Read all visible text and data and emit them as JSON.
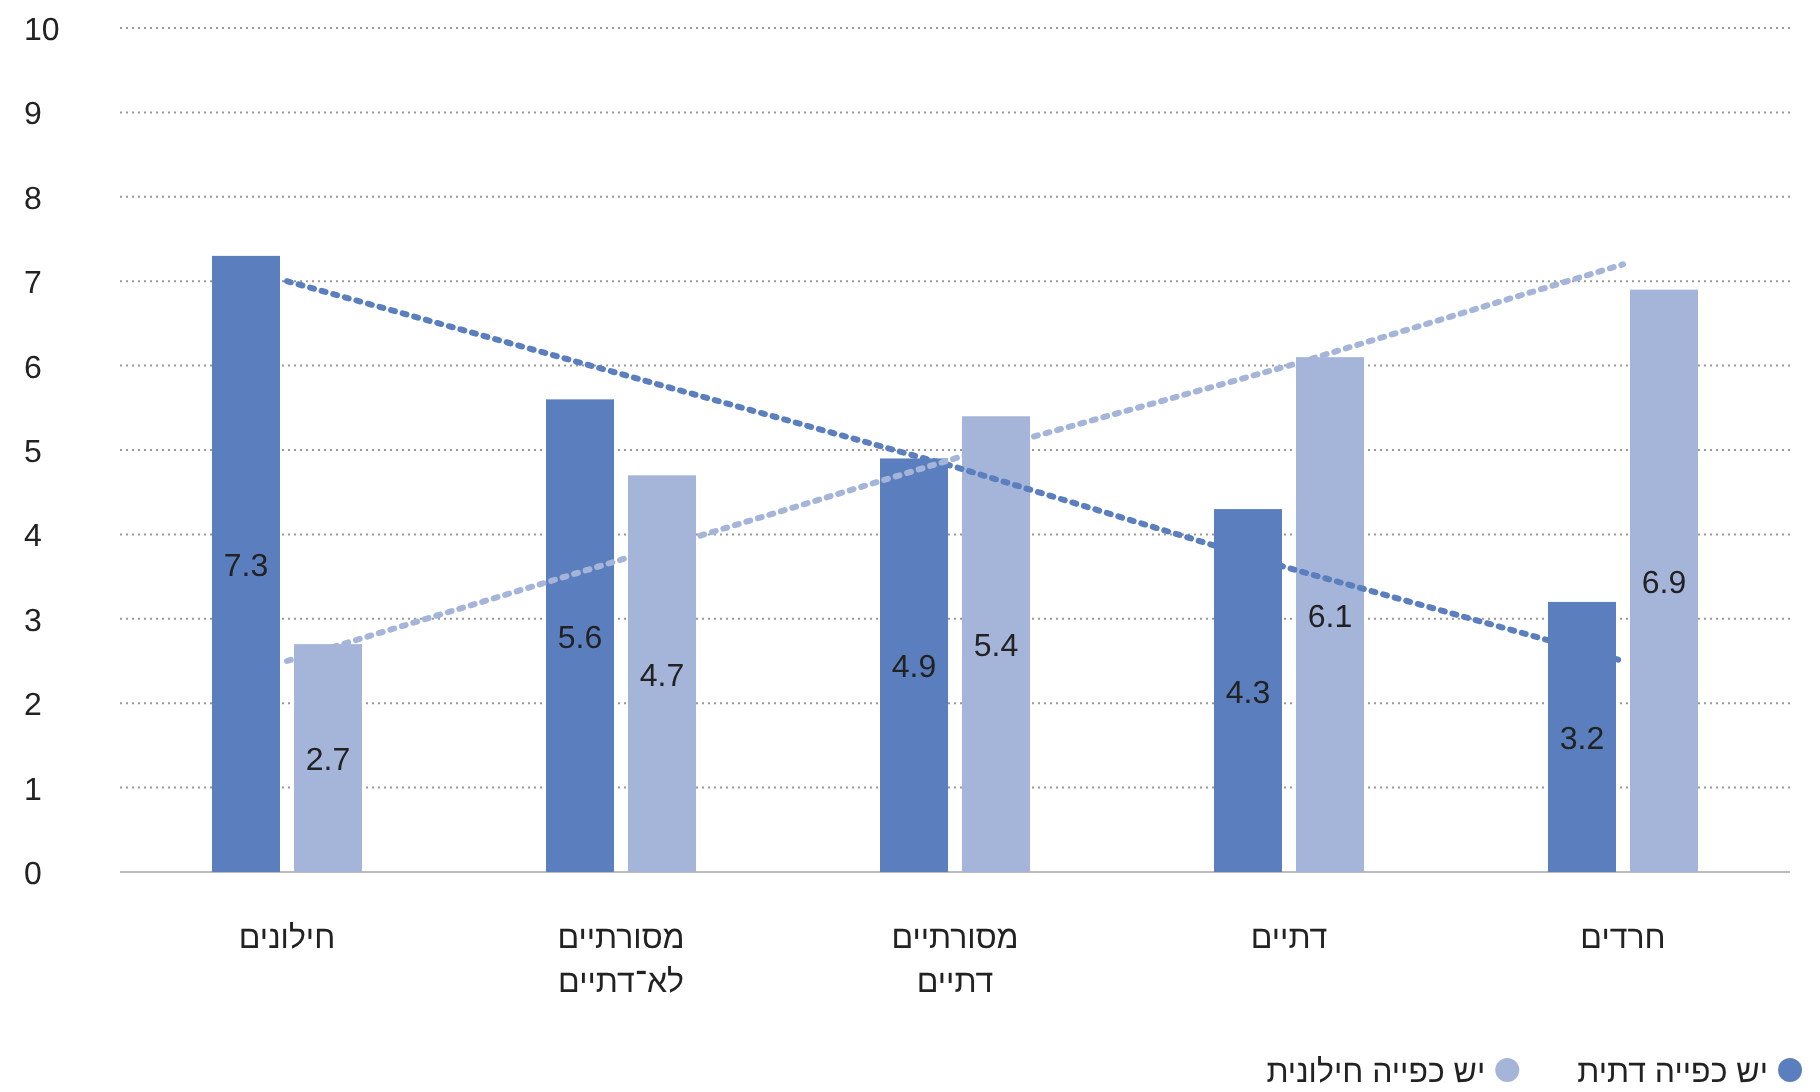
{
  "chart_data": {
    "type": "bar",
    "categories": [
      "חילונים",
      "מסורתיים\nלא־דתיים",
      "מסורתיים\nדתיים",
      "דתיים",
      "חרדים"
    ],
    "series": [
      {
        "name": "יש כפייה דתית",
        "color": "#5b7fbe",
        "values": [
          7.3,
          5.6,
          4.9,
          4.3,
          3.2
        ],
        "value_labels": [
          "7.3",
          "5.6",
          "4.9",
          "4.3",
          "3.2"
        ]
      },
      {
        "name": "יש כפייה חילונית",
        "color": "#a5b5da",
        "values": [
          2.7,
          4.7,
          5.4,
          6.1,
          6.9
        ],
        "value_labels": [
          "2.7",
          "4.7",
          "5.4",
          "6.1",
          "6.9"
        ]
      },
      {
        "type": "line",
        "color": "#5b7fbe",
        "line_style": "dotted",
        "values": [
          7.0,
          5.9,
          4.8,
          3.6,
          2.5
        ]
      },
      {
        "type": "line",
        "color": "#a5b5da",
        "line_style": "dotted",
        "values": [
          2.5,
          3.7,
          4.9,
          6.0,
          7.2
        ]
      }
    ],
    "ylim": [
      0,
      10
    ],
    "yticks": [
      0,
      1,
      2,
      3,
      4,
      5,
      6,
      7,
      8,
      9,
      10
    ],
    "grid": "y",
    "legend": "bottom right"
  }
}
